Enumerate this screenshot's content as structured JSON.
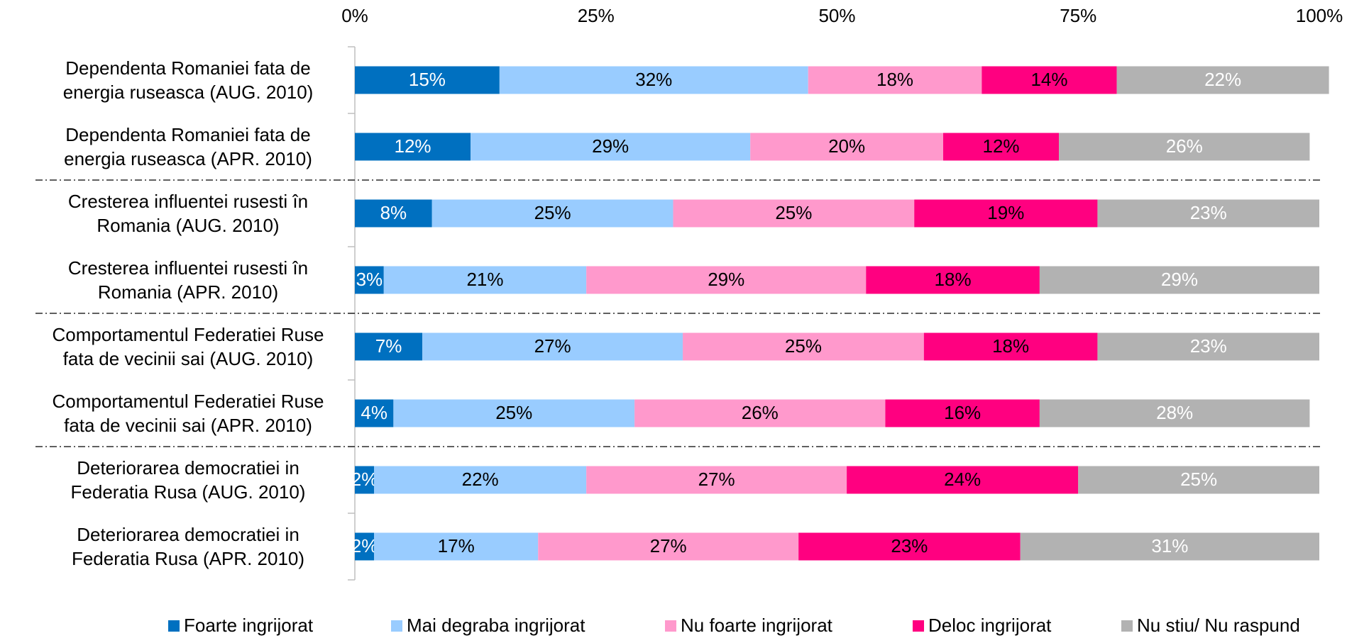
{
  "chart_data": {
    "type": "stacked_bar_horizontal",
    "categories": [
      "Dependenta Romaniei fata de energia ruseasca (AUG. 2010)",
      "Dependenta Romaniei fata de energia ruseasca (APR. 2010)",
      "Cresterea influentei rusesti în Romania (AUG. 2010)",
      "Cresterea influentei rusesti în Romania (APR. 2010)",
      "Comportamentul Federatiei Ruse fata de vecinii sai (AUG. 2010)",
      "Comportamentul Federatiei Ruse fata de vecinii sai (APR. 2010)",
      "Deteriorarea democratiei in Federatia Rusa (AUG. 2010)",
      "Deteriorarea democratiei in Federatia Rusa (APR. 2010)"
    ],
    "series": [
      {
        "name": "Foarte ingrijorat",
        "color": "#0070c0",
        "label_color": "#ffffff",
        "values": [
          15,
          12,
          8,
          3,
          7,
          4,
          2,
          2
        ],
        "value_labels": [
          "15%",
          "12%",
          "8%",
          "3%",
          "7%",
          "4%",
          "2%",
          "2%"
        ]
      },
      {
        "name": "Mai degraba ingrijorat",
        "color": "#99ccff",
        "label_color": "#000000",
        "values": [
          32,
          29,
          25,
          21,
          27,
          25,
          22,
          17
        ],
        "value_labels": [
          "32%",
          "29%",
          "25%",
          "21%",
          "27%",
          "25%",
          "22%",
          "17%"
        ]
      },
      {
        "name": "Nu foarte ingrijorat",
        "color": "#ff99cc",
        "label_color": "#000000",
        "values": [
          18,
          20,
          25,
          29,
          25,
          26,
          27,
          27
        ],
        "value_labels": [
          "18%",
          "20%",
          "25%",
          "29%",
          "25%",
          "26%",
          "27%",
          "27%"
        ]
      },
      {
        "name": "Deloc ingrijorat",
        "color": "#ff0080",
        "label_color": "#000000",
        "values": [
          14,
          12,
          19,
          18,
          18,
          16,
          24,
          23
        ],
        "value_labels": [
          "14%",
          "12%",
          "19%",
          "18%",
          "18%",
          "16%",
          "24%",
          "23%"
        ]
      },
      {
        "name": "Nu stiu/ Nu raspund",
        "color": "#b2b2b2",
        "label_color": "#ffffff",
        "values": [
          22,
          26,
          23,
          29,
          23,
          28,
          25,
          31
        ],
        "value_labels": [
          "22%",
          "26%",
          "23%",
          "29%",
          "23%",
          "28%",
          "25%",
          "31%"
        ]
      }
    ],
    "xlim": [
      0,
      100
    ],
    "xticks": [
      {
        "value": 0,
        "label": "0%"
      },
      {
        "value": 25,
        "label": "25%"
      },
      {
        "value": 50,
        "label": "50%"
      },
      {
        "value": 75,
        "label": "75%"
      },
      {
        "value": 100,
        "label": "100%"
      }
    ],
    "legend": "bottom"
  }
}
